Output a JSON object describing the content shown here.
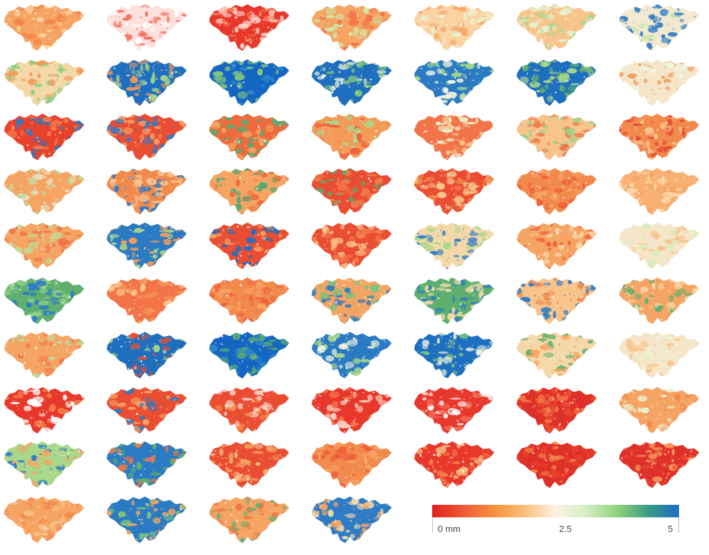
{
  "map_panels": {
    "grid": {
      "rows": 10,
      "columns": 7,
      "panels_in_last_row": 4
    },
    "panels": [
      {
        "row": 1,
        "col": 1,
        "pattern": [
          "#f6a463",
          "#f38548",
          "#fbd9a6"
        ]
      },
      {
        "row": 1,
        "col": 2,
        "pattern": [
          "#fde0dc",
          "#f26d5b",
          "#ffffff"
        ]
      },
      {
        "row": 1,
        "col": 3,
        "pattern": [
          "#e8382b",
          "#f57a55",
          "#ffd3c6"
        ]
      },
      {
        "row": 1,
        "col": 4,
        "pattern": [
          "#f6a463",
          "#f27448",
          "#cfe8a8"
        ]
      },
      {
        "row": 1,
        "col": 5,
        "pattern": [
          "#fbd2a2",
          "#e9f1cf",
          "#f7a566"
        ]
      },
      {
        "row": 1,
        "col": 6,
        "pattern": [
          "#f8c48c",
          "#a8d88a",
          "#e6efcf"
        ]
      },
      {
        "row": 1,
        "col": 7,
        "pattern": [
          "#f3e8d0",
          "#2e7bc6",
          "#cde6b4"
        ]
      },
      {
        "row": 2,
        "col": 1,
        "pattern": [
          "#f5d8a8",
          "#8ccf84",
          "#f39a5a"
        ]
      },
      {
        "row": 2,
        "col": 2,
        "pattern": [
          "#1f6fc0",
          "#a8d88a",
          "#f39a5a"
        ]
      },
      {
        "row": 2,
        "col": 3,
        "pattern": [
          "#1466c2",
          "#2b84c8",
          "#7fc47c"
        ]
      },
      {
        "row": 2,
        "col": 4,
        "pattern": [
          "#1f6fc0",
          "#7cc37a",
          "#ecf3d8"
        ]
      },
      {
        "row": 2,
        "col": 5,
        "pattern": [
          "#2b7bc4",
          "#9ad48b",
          "#f3f3e0"
        ]
      },
      {
        "row": 2,
        "col": 6,
        "pattern": [
          "#1f6fc0",
          "#5fb06f",
          "#a8d88a"
        ]
      },
      {
        "row": 2,
        "col": 7,
        "pattern": [
          "#f6e6c9",
          "#f39a5a",
          "#eef3dc"
        ]
      },
      {
        "row": 3,
        "col": 1,
        "pattern": [
          "#e8412c",
          "#f47a4a",
          "#2b7bc4"
        ]
      },
      {
        "row": 3,
        "col": 2,
        "pattern": [
          "#ea4d32",
          "#f59b62",
          "#2e7bc6"
        ]
      },
      {
        "row": 3,
        "col": 3,
        "pattern": [
          "#ef6a3c",
          "#f6a463",
          "#5aa96f"
        ]
      },
      {
        "row": 3,
        "col": 4,
        "pattern": [
          "#f59b5a",
          "#ef5e3a",
          "#a8d88a"
        ]
      },
      {
        "row": 3,
        "col": 5,
        "pattern": [
          "#f27448",
          "#f8c48c",
          "#e9f1cf"
        ]
      },
      {
        "row": 3,
        "col": 6,
        "pattern": [
          "#f8c48c",
          "#9ad48b",
          "#f27448"
        ]
      },
      {
        "row": 3,
        "col": 7,
        "pattern": [
          "#f28a4d",
          "#e8412c",
          "#fbc98f"
        ]
      },
      {
        "row": 4,
        "col": 1,
        "pattern": [
          "#f6a463",
          "#eadbc0",
          "#b9e09c"
        ]
      },
      {
        "row": 4,
        "col": 2,
        "pattern": [
          "#f28a4d",
          "#2e7bc6",
          "#f8c48c"
        ]
      },
      {
        "row": 4,
        "col": 3,
        "pattern": [
          "#f6a463",
          "#5aa96f",
          "#ef6a3c"
        ]
      },
      {
        "row": 4,
        "col": 4,
        "pattern": [
          "#ea4d32",
          "#f47a4a",
          "#5aa96f"
        ]
      },
      {
        "row": 4,
        "col": 5,
        "pattern": [
          "#ea4d32",
          "#f28a4d",
          "#f8c48c"
        ]
      },
      {
        "row": 4,
        "col": 6,
        "pattern": [
          "#f28a4d",
          "#f6a463",
          "#ef5e3a"
        ]
      },
      {
        "row": 4,
        "col": 7,
        "pattern": [
          "#f8b073",
          "#f6a463",
          "#fbd9a6"
        ]
      },
      {
        "row": 5,
        "col": 1,
        "pattern": [
          "#f6a463",
          "#b9e09c",
          "#f27448"
        ]
      },
      {
        "row": 5,
        "col": 2,
        "pattern": [
          "#2b7bc4",
          "#f59b5a",
          "#a8d88a"
        ]
      },
      {
        "row": 5,
        "col": 3,
        "pattern": [
          "#ea4d32",
          "#1f6fc0",
          "#f6a463"
        ]
      },
      {
        "row": 5,
        "col": 4,
        "pattern": [
          "#ea4d32",
          "#f47a4a",
          "#f8c48c"
        ]
      },
      {
        "row": 5,
        "col": 5,
        "pattern": [
          "#f5d8a8",
          "#2e7bc6",
          "#a8d88a"
        ]
      },
      {
        "row": 5,
        "col": 6,
        "pattern": [
          "#f6a463",
          "#f5d8a8",
          "#ef5e3a"
        ]
      },
      {
        "row": 5,
        "col": 7,
        "pattern": [
          "#f6e6c9",
          "#f8c48c",
          "#d7ecbc"
        ]
      },
      {
        "row": 6,
        "col": 1,
        "pattern": [
          "#5fb06f",
          "#9ad48b",
          "#2e7bc6"
        ]
      },
      {
        "row": 6,
        "col": 2,
        "pattern": [
          "#f27448",
          "#f59b5a",
          "#fbc98f"
        ]
      },
      {
        "row": 6,
        "col": 3,
        "pattern": [
          "#f28a4d",
          "#f6a463",
          "#ef5e3a"
        ]
      },
      {
        "row": 6,
        "col": 4,
        "pattern": [
          "#f6a463",
          "#7cc37a",
          "#2b7bc4"
        ]
      },
      {
        "row": 6,
        "col": 5,
        "pattern": [
          "#5fb06f",
          "#2b7bc4",
          "#f5d8a8"
        ]
      },
      {
        "row": 6,
        "col": 6,
        "pattern": [
          "#f8c48c",
          "#f28a4d",
          "#2b7bc4"
        ]
      },
      {
        "row": 6,
        "col": 7,
        "pattern": [
          "#f6a463",
          "#5fb06f",
          "#f5d8a8"
        ]
      },
      {
        "row": 7,
        "col": 1,
        "pattern": [
          "#f6a463",
          "#b9e09c",
          "#f27448"
        ]
      },
      {
        "row": 7,
        "col": 2,
        "pattern": [
          "#1f6fc0",
          "#ea4d32",
          "#a8d88a"
        ]
      },
      {
        "row": 7,
        "col": 3,
        "pattern": [
          "#1466c2",
          "#5fb06f",
          "#2b84c8"
        ]
      },
      {
        "row": 7,
        "col": 4,
        "pattern": [
          "#2b7bc4",
          "#a8d88a",
          "#f3f3e0"
        ]
      },
      {
        "row": 7,
        "col": 5,
        "pattern": [
          "#1f6fc0",
          "#7cc37a",
          "#f3f3e0"
        ]
      },
      {
        "row": 7,
        "col": 6,
        "pattern": [
          "#f5d8a8",
          "#5fb06f",
          "#f6a463"
        ]
      },
      {
        "row": 7,
        "col": 7,
        "pattern": [
          "#f6e6c9",
          "#f8c48c",
          "#e9f1cf"
        ]
      },
      {
        "row": 8,
        "col": 1,
        "pattern": [
          "#e8382b",
          "#ffffff",
          "#f47a4a"
        ]
      },
      {
        "row": 8,
        "col": 2,
        "pattern": [
          "#ea4d32",
          "#2b7bc4",
          "#f6a463"
        ]
      },
      {
        "row": 8,
        "col": 3,
        "pattern": [
          "#ea4d32",
          "#f28a4d",
          "#fbd2c2"
        ]
      },
      {
        "row": 8,
        "col": 4,
        "pattern": [
          "#e8382b",
          "#fbd2c2",
          "#f47a4a"
        ]
      },
      {
        "row": 8,
        "col": 5,
        "pattern": [
          "#e8382b",
          "#ffffff",
          "#f26d5b"
        ]
      },
      {
        "row": 8,
        "col": 6,
        "pattern": [
          "#e0302a",
          "#ea4d32",
          "#f47a4a"
        ]
      },
      {
        "row": 8,
        "col": 7,
        "pattern": [
          "#f6a463",
          "#f28a4d",
          "#e9f1cf"
        ]
      },
      {
        "row": 9,
        "col": 1,
        "pattern": [
          "#a8d88a",
          "#2e7bc6",
          "#f6a463"
        ]
      },
      {
        "row": 9,
        "col": 2,
        "pattern": [
          "#2b7bc4",
          "#f27448",
          "#5fb06f"
        ]
      },
      {
        "row": 9,
        "col": 3,
        "pattern": [
          "#ea4d32",
          "#f59b5a",
          "#f8c48c"
        ]
      },
      {
        "row": 9,
        "col": 4,
        "pattern": [
          "#f28a4d",
          "#f6a463",
          "#ef5e3a"
        ]
      },
      {
        "row": 9,
        "col": 5,
        "pattern": [
          "#e8382b",
          "#f47a4a",
          "#f8c48c"
        ]
      },
      {
        "row": 9,
        "col": 6,
        "pattern": [
          "#e0302a",
          "#e8412c",
          "#f28a4d"
        ]
      },
      {
        "row": 9,
        "col": 7,
        "pattern": [
          "#e0302a",
          "#ea4d32",
          "#f59b5a"
        ]
      },
      {
        "row": 10,
        "col": 1,
        "pattern": [
          "#f6a463",
          "#f28a4d",
          "#f8c48c"
        ]
      },
      {
        "row": 10,
        "col": 2,
        "pattern": [
          "#2b7bc4",
          "#f6a463",
          "#7cc37a"
        ]
      },
      {
        "row": 10,
        "col": 3,
        "pattern": [
          "#f6a463",
          "#5fb06f",
          "#f27448"
        ]
      },
      {
        "row": 10,
        "col": 4,
        "pattern": [
          "#2e7bc6",
          "#f6a463",
          "#f5d8a8"
        ]
      }
    ]
  },
  "legend": {
    "min_label": "0 mm",
    "mid_label": "2.5",
    "max_label": "5",
    "min_value": 0,
    "mid_value": 2.5,
    "max_value": 5,
    "colors": [
      "#e21f1c",
      "#ef5a35",
      "#f7903f",
      "#fbc07a",
      "#fdf2e6",
      "#d5efc2",
      "#8fd27a",
      "#3a9c84",
      "#1a6cc8"
    ]
  }
}
